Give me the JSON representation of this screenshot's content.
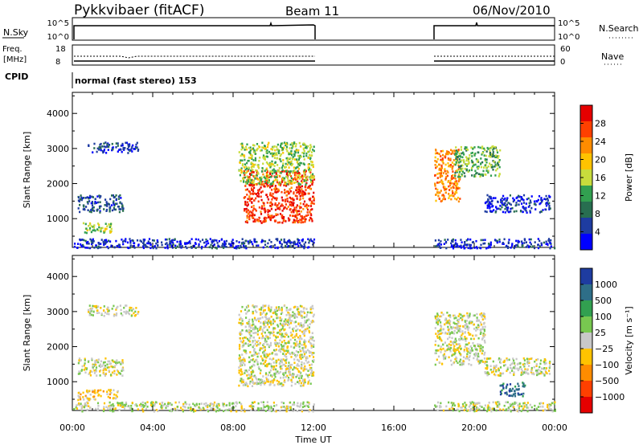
{
  "header": {
    "station": "Pykkvibaer (fitACF)",
    "beam": "Beam 11",
    "date": "06/Nov/2010"
  },
  "params": {
    "nsky_label": "N.Sky",
    "nsky_ticks": [
      "10^5",
      "10^0"
    ],
    "nsearch_label": "N.Search",
    "nsearch_ticks": [
      "10^5",
      "10^0"
    ],
    "freq_label_top": "Freq.",
    "freq_label_bottom": "[MHz]",
    "freq_ticks": [
      "18",
      "8"
    ],
    "nave_label": "Nave",
    "nave_ticks": [
      "60",
      "0"
    ],
    "cpid_label": "CPID",
    "cpid_text": "normal (fast stereo) 153"
  },
  "axes": {
    "ylabel": "Slant Range [km]",
    "yticks": [
      "4000",
      "3000",
      "2000",
      "1000"
    ],
    "xticks": [
      "00:00",
      "04:00",
      "08:00",
      "12:00",
      "16:00",
      "20:00",
      "00:00"
    ],
    "xlabel": "Time UT"
  },
  "colorbars": {
    "power": {
      "label": "Power [dB]",
      "ticks": [
        "28",
        "24",
        "20",
        "16",
        "12",
        "8",
        "4"
      ],
      "colors": [
        "#e60000",
        "#ff4000",
        "#ff8c00",
        "#ffc300",
        "#c8dc3c",
        "#32a050",
        "#286e50",
        "#1e3ca0",
        "#0000ff"
      ]
    },
    "velocity": {
      "label": "Velocity [m s⁻¹]",
      "ticks": [
        "1000",
        "500",
        "100",
        "25",
        "−25",
        "−100",
        "−500",
        "−1000"
      ],
      "colors": [
        "#1e3ca0",
        "#2e6e88",
        "#32a050",
        "#78c850",
        "#c8c8c8",
        "#ffc300",
        "#ff8c00",
        "#ff4000",
        "#e60000"
      ]
    }
  },
  "chart_data": [
    {
      "type": "heatmap",
      "title": "Power",
      "xlabel": "Time UT",
      "ylabel": "Slant Range [km]",
      "xlim": [
        "00:00",
        "24:00"
      ],
      "ylim": [
        180,
        4600
      ],
      "colorbar": "Power [dB]",
      "clim": [
        0,
        30
      ],
      "data_gaps": [
        [
          "12:00",
          "18:00"
        ]
      ],
      "regions": [
        {
          "time": [
            "00:45",
            "03:15"
          ],
          "range": [
            2900,
            3200
          ],
          "value": 4
        },
        {
          "time": [
            "00:15",
            "02:30"
          ],
          "range": [
            1200,
            1700
          ],
          "value": 6
        },
        {
          "time": [
            "00:30",
            "02:00"
          ],
          "range": [
            600,
            900
          ],
          "value": 14
        },
        {
          "time": [
            "08:30",
            "12:00"
          ],
          "range": [
            900,
            2400
          ],
          "value": 26
        },
        {
          "time": [
            "08:15",
            "12:00"
          ],
          "range": [
            2000,
            3200
          ],
          "value": 14
        },
        {
          "time": [
            "18:00",
            "19:15"
          ],
          "range": [
            1500,
            3000
          ],
          "value": 22
        },
        {
          "time": [
            "19:00",
            "21:15"
          ],
          "range": [
            2200,
            3100
          ],
          "value": 12
        },
        {
          "time": [
            "20:30",
            "23:45"
          ],
          "range": [
            1200,
            1700
          ],
          "value": 4
        },
        {
          "time": [
            "00:00",
            "24:00"
          ],
          "range": [
            180,
            450
          ],
          "value": 4
        }
      ]
    },
    {
      "type": "heatmap",
      "title": "Velocity",
      "xlabel": "Time UT",
      "ylabel": "Slant Range [km]",
      "xlim": [
        "00:00",
        "24:00"
      ],
      "ylim": [
        180,
        4600
      ],
      "colorbar": "Velocity [m s⁻¹]",
      "clim": [
        -1000,
        1000
      ],
      "data_gaps": [
        [
          "12:00",
          "18:00"
        ]
      ],
      "regions": [
        {
          "time": [
            "00:45",
            "03:15"
          ],
          "range": [
            2900,
            3200
          ],
          "value": 0
        },
        {
          "time": [
            "00:15",
            "02:30"
          ],
          "range": [
            1200,
            1700
          ],
          "value": 0
        },
        {
          "time": [
            "00:15",
            "02:15"
          ],
          "range": [
            500,
            800
          ],
          "value": -200
        },
        {
          "time": [
            "08:15",
            "12:00"
          ],
          "range": [
            900,
            3200
          ],
          "value": 0
        },
        {
          "time": [
            "18:00",
            "20:30"
          ],
          "range": [
            1500,
            3000
          ],
          "value": 0
        },
        {
          "time": [
            "20:30",
            "23:45"
          ],
          "range": [
            1200,
            1700
          ],
          "value": 0
        },
        {
          "time": [
            "21:15",
            "22:30"
          ],
          "range": [
            600,
            1000
          ],
          "value": 700
        },
        {
          "time": [
            "00:00",
            "24:00"
          ],
          "range": [
            180,
            450
          ],
          "value": 50
        }
      ]
    }
  ]
}
